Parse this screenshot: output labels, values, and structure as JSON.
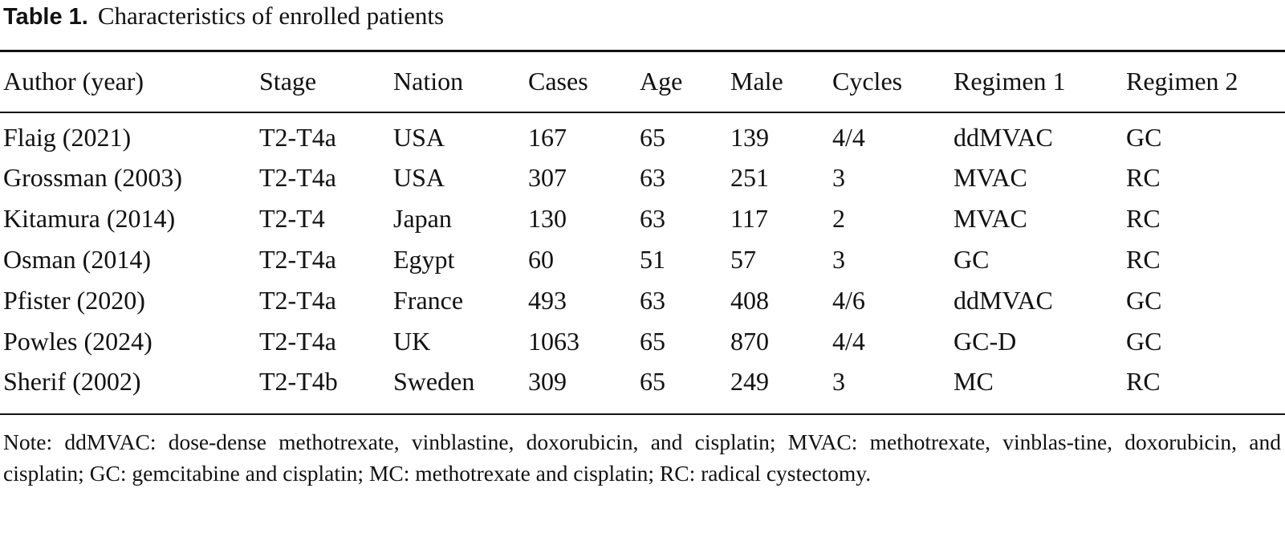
{
  "table": {
    "label": "Table 1.",
    "title": "Characteristics of enrolled patients",
    "columns": [
      "Author (year)",
      "Stage",
      "Nation",
      "Cases",
      "Age",
      "Male",
      "Cycles",
      "Regimen 1",
      "Regimen 2"
    ],
    "rows": [
      [
        "Flaig (2021)",
        "T2-T4a",
        "USA",
        "167",
        "65",
        "139",
        "4/4",
        "ddMVAC",
        "GC"
      ],
      [
        "Grossman (2003)",
        "T2-T4a",
        "USA",
        "307",
        "63",
        "251",
        "3",
        "MVAC",
        "RC"
      ],
      [
        "Kitamura (2014)",
        "T2-T4",
        "Japan",
        "130",
        "63",
        "117",
        "2",
        "MVAC",
        "RC"
      ],
      [
        "Osman (2014)",
        "T2-T4a",
        "Egypt",
        "60",
        "51",
        "57",
        "3",
        "GC",
        "RC"
      ],
      [
        "Pfister (2020)",
        "T2-T4a",
        "France",
        "493",
        "63",
        "408",
        "4/6",
        "ddMVAC",
        "GC"
      ],
      [
        "Powles (2024)",
        "T2-T4a",
        "UK",
        "1063",
        "65",
        "870",
        "4/4",
        "GC-D",
        "GC"
      ],
      [
        "Sherif (2002)",
        "T2-T4b",
        "Sweden",
        "309",
        "65",
        "249",
        "3",
        "MC",
        "RC"
      ]
    ],
    "note": "Note: ddMVAC: dose-dense methotrexate, vinblastine, doxorubicin, and cisplatin; MVAC: methotrexate, vinblas-tine, doxorubicin, and cisplatin; GC: gemcitabine and cisplatin; MC: methotrexate and cisplatin; RC: radical cystectomy."
  }
}
